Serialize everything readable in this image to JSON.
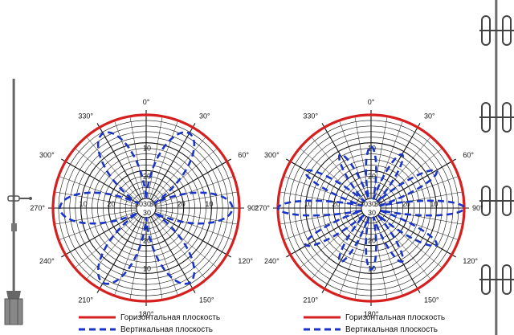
{
  "chart_data": [
    {
      "type": "polar",
      "angle_labels": [
        "0°",
        "30°",
        "60°",
        "90°",
        "120°",
        "150°",
        "180°",
        "210°",
        "240°",
        "270°",
        "300°",
        "330°"
      ],
      "radial_labels": [
        "10",
        "20",
        "30"
      ],
      "radial_axis": "attenuation, dB (0 at rim, 30 at inner circle)",
      "series": [
        {
          "name": "Горизонтальная плоскость",
          "color": "#d62020",
          "pattern": "circle",
          "attenuation_db": 0
        },
        {
          "name": "Вертикальная плоскость",
          "color": "#1a35c8",
          "pattern": "lobes",
          "lobes": 6,
          "lobe_angles_deg": [
            30,
            90,
            150,
            210,
            270,
            330
          ],
          "null_attenuation_db": 30
        }
      ]
    },
    {
      "type": "polar",
      "angle_labels": [
        "0°",
        "30°",
        "60°",
        "90°",
        "120°",
        "150°",
        "180°",
        "210°",
        "240°",
        "270°",
        "300°",
        "330°"
      ],
      "radial_labels": [
        "10",
        "20",
        "30"
      ],
      "radial_axis": "attenuation, dB (0 at rim, 30 at inner circle)",
      "series": [
        {
          "name": "Горизонтальная плоскость",
          "color": "#d62020",
          "pattern": "circle",
          "attenuation_db": 0
        },
        {
          "name": "Вертикальная плоскость",
          "color": "#1a35c8",
          "pattern": "lobes",
          "lobes": 12,
          "main_lobe_angles_deg": [
            90,
            270
          ],
          "null_attenuation_db": 30
        }
      ]
    }
  ],
  "legend": {
    "horizontal": "Горизонтальная плоскость",
    "vertical": "Вертикальная плоскость"
  },
  "colors": {
    "horizontal": "#d62020",
    "vertical": "#1a35c8",
    "grid": "#111111"
  }
}
